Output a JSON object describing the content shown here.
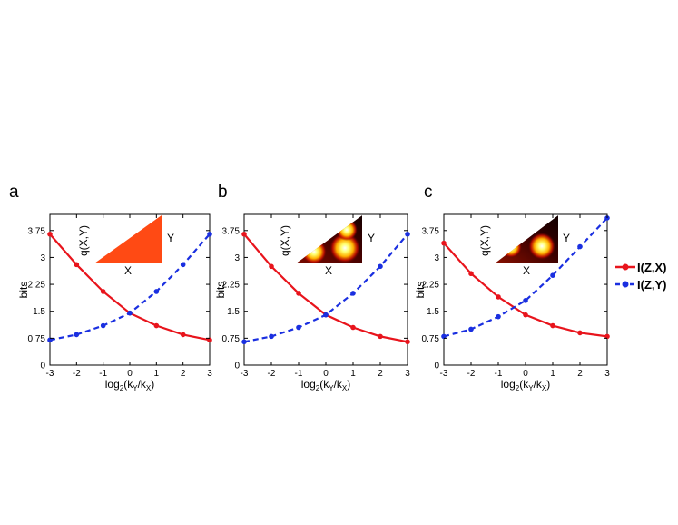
{
  "panels": [
    {
      "letter": "a",
      "inset_ylabel": "q(X,Y)",
      "inset_xlabel": "X",
      "inset_side_label": "Y"
    },
    {
      "letter": "b",
      "inset_ylabel": "q(X,Y)",
      "inset_xlabel": "X",
      "inset_side_label": "Y"
    },
    {
      "letter": "c",
      "inset_ylabel": "q(X,Y)",
      "inset_xlabel": "X",
      "inset_side_label": "Y"
    }
  ],
  "legend": {
    "items": [
      {
        "label": "I(Z,X)",
        "color": "#e8141c",
        "style": "solid"
      },
      {
        "label": "I(Z,Y)",
        "color": "#1a2fe0",
        "style": "dashed"
      }
    ]
  },
  "colors": {
    "zx": "#e8141c",
    "zy": "#1a2fe0",
    "inset_a_fill": "#ff4a14"
  },
  "chart_data": [
    {
      "type": "line",
      "panel": "a",
      "x": [
        -3,
        -2,
        -1,
        0,
        1,
        2,
        3
      ],
      "xticks": [
        "-3",
        "-2",
        "-1",
        "0",
        "1",
        "2",
        "3"
      ],
      "yticks": [
        "0",
        "0.75",
        "1.5",
        "2.25",
        "3",
        "3.75"
      ],
      "ytick_values": [
        0,
        0.75,
        1.5,
        2.25,
        3,
        3.75
      ],
      "xlabel": "log2(kY/kX)",
      "ylabel": "bits",
      "xlim": [
        -3,
        3
      ],
      "ylim": [
        0,
        4.2
      ],
      "series": [
        {
          "name": "I(Z,X)",
          "values": [
            3.65,
            2.8,
            2.05,
            1.45,
            1.1,
            0.85,
            0.7
          ]
        },
        {
          "name": "I(Z,Y)",
          "values": [
            0.7,
            0.85,
            1.1,
            1.45,
            2.05,
            2.8,
            3.65
          ]
        }
      ]
    },
    {
      "type": "line",
      "panel": "b",
      "x": [
        -3,
        -2,
        -1,
        0,
        1,
        2,
        3
      ],
      "xticks": [
        "-3",
        "-2",
        "-1",
        "0",
        "1",
        "2",
        "3"
      ],
      "yticks": [
        "0",
        "0.75",
        "1.5",
        "2.25",
        "3",
        "3.75"
      ],
      "ytick_values": [
        0,
        0.75,
        1.5,
        2.25,
        3,
        3.75
      ],
      "xlabel": "log2(kY/kX)",
      "ylabel": "bits",
      "xlim": [
        -3,
        3
      ],
      "ylim": [
        0,
        4.2
      ],
      "series": [
        {
          "name": "I(Z,X)",
          "values": [
            3.65,
            2.75,
            2.0,
            1.4,
            1.05,
            0.8,
            0.65
          ]
        },
        {
          "name": "I(Z,Y)",
          "values": [
            0.65,
            0.8,
            1.05,
            1.4,
            2.0,
            2.75,
            3.65
          ]
        }
      ]
    },
    {
      "type": "line",
      "panel": "c",
      "x": [
        -3,
        -2,
        -1,
        0,
        1,
        2,
        3
      ],
      "xticks": [
        "-3",
        "-2",
        "-1",
        "0",
        "1",
        "2",
        "3"
      ],
      "yticks": [
        "0",
        "0.75",
        "1.5",
        "2.25",
        "3",
        "3.75"
      ],
      "ytick_values": [
        0,
        0.75,
        1.5,
        2.25,
        3,
        3.75
      ],
      "xlabel": "log2(kY/kX)",
      "ylabel": "bits",
      "xlim": [
        -3,
        3
      ],
      "ylim": [
        0,
        4.2
      ],
      "series": [
        {
          "name": "I(Z,X)",
          "values": [
            3.4,
            2.55,
            1.9,
            1.4,
            1.1,
            0.9,
            0.8
          ]
        },
        {
          "name": "I(Z,Y)",
          "values": [
            0.8,
            1.0,
            1.35,
            1.8,
            2.5,
            3.3,
            4.1
          ]
        }
      ]
    }
  ]
}
